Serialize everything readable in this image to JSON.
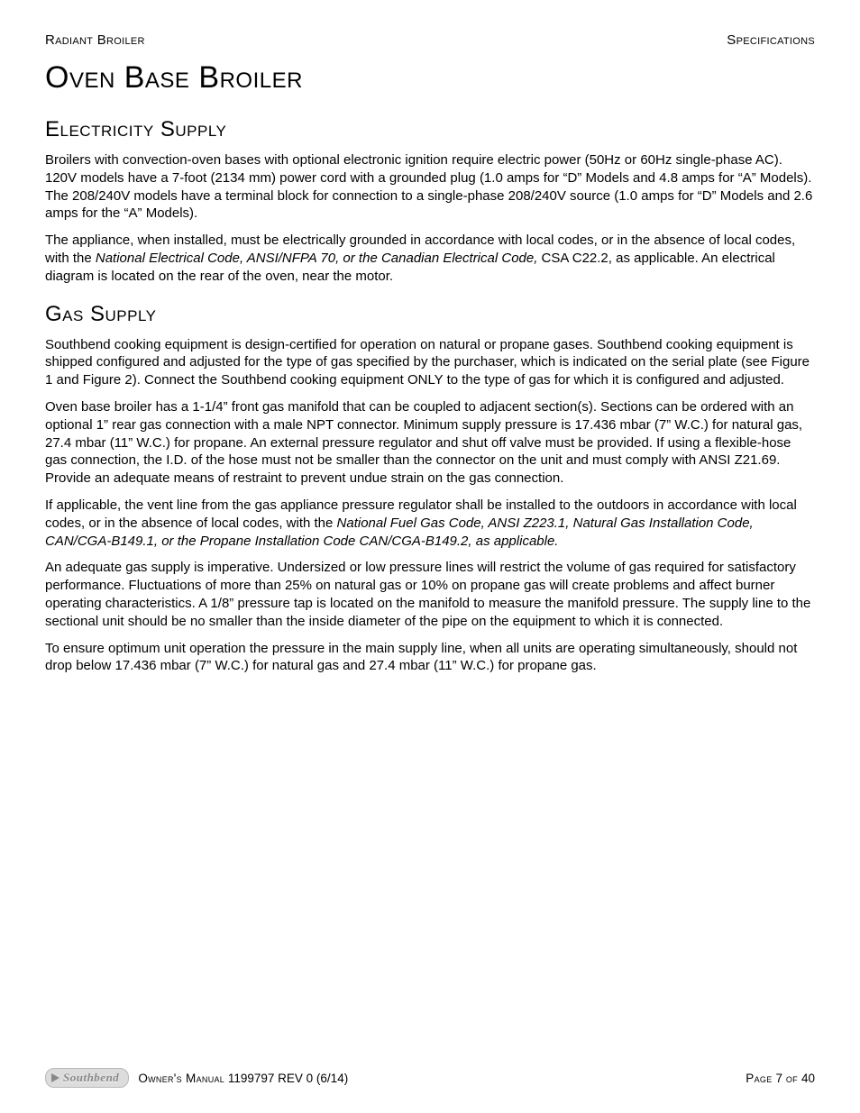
{
  "header": {
    "left": "Radiant Broiler",
    "right": "Specifications"
  },
  "title": "Oven Base Broiler",
  "sections": {
    "electricity": {
      "heading": "Electricity Supply",
      "p1": "Broilers with convection-oven bases with optional electronic ignition require electric power (50Hz or 60Hz single-phase AC). 120V models have a 7-foot (2134 mm) power cord with a grounded plug (1.0 amps for “D” Models and 4.8 amps for “A” Models).  The 208/240V models have a terminal block for connection to a single-phase 208/240V source (1.0 amps for “D” Models and 2.6 amps for the “A” Models).",
      "p2a": "The appliance, when installed, must be electrically grounded in accordance with local codes, or in the absence of local codes, with the ",
      "p2i": "National Electrical Code, ANSI/NFPA 70, or the Canadian Electrical Code,",
      "p2b": " CSA C22.2, as applicable. An electrical diagram is located on the rear of the oven, near the motor."
    },
    "gas": {
      "heading": "Gas Supply",
      "p1": "Southbend cooking equipment is design-certified for operation on natural or propane gases. Southbend cooking equipment is shipped configured and adjusted for the type of gas specified by the purchaser, which is indicated on the serial plate (see Figure 1 and Figure 2). Connect the Southbend cooking equipment ONLY to the type of gas for which it is configured and adjusted.",
      "p2": "Oven base broiler has a 1-1/4” front gas manifold that can be coupled to adjacent section(s). Sections can be ordered with an optional 1” rear gas connection with a male NPT connector. Minimum supply pressure is 17.436 mbar (7” W.C.) for natural gas, 27.4 mbar (11” W.C.) for propane. An external pressure regulator and shut off valve must be provided. If using a flexible-hose gas connection, the I.D. of the hose must not be smaller than the connector on the unit and must comply with ANSI Z21.69. Provide an adequate means of restraint to prevent undue strain on the gas connection.",
      "p3a": "If applicable, the vent line from the gas appliance pressure regulator shall be installed to the outdoors in accordance with local codes, or in the absence of local codes, with the ",
      "p3i": "National Fuel Gas Code, ANSI Z223.1, Natural Gas Installation Code, CAN/CGA-B149.1, or the Propane Installation Code CAN/CGA-B149.2, as applicable.",
      "p4": "An adequate gas supply is imperative. Undersized or low pressure lines will restrict the volume of gas required for satisfactory performance. Fluctuations of more than 25% on natural gas or 10% on propane gas will create problems and affect burner operating characteristics. A 1/8” pressure tap is located on the manifold to measure the manifold pressure. The supply line to the sectional unit should be no smaller than the inside diameter of the pipe on the equipment to which it is connected.",
      "p5": "To ensure optimum unit operation the pressure in the main supply line, when all units are operating simultaneously, should not drop below 17.436 mbar (7” W.C.) for natural gas and 27.4 mbar (11” W.C.) for propane gas."
    }
  },
  "footer": {
    "logo_text": "Southbend",
    "manual_prefix": "Owner's Manual",
    "manual_code": " 1199797 REV 0 (6/14)",
    "page_label": "Page ",
    "page_num": " 7 ",
    "page_of": " of ",
    "page_total": " 40"
  }
}
